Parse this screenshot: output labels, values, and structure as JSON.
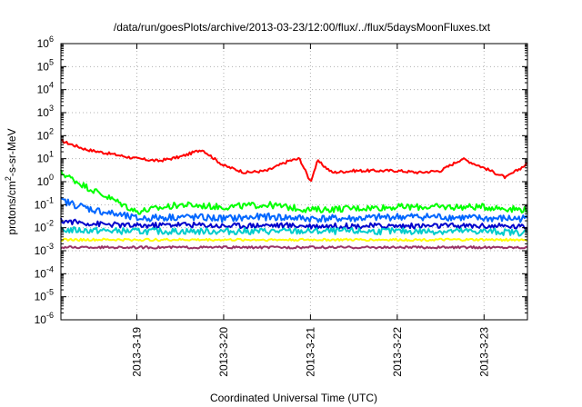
{
  "chart_data": {
    "type": "line",
    "title": "/data/run/goesPlots/archive/2013-03-23/12:00/flux/../flux/5daysMoonFluxes.txt",
    "xlabel": "Coordinated Universal Time (UTC)",
    "ylabel": {
      "main": "protons/cm",
      "sup": "2",
      "rest": "-s-sr-MeV"
    },
    "yscale": "log",
    "ylim_exp": [
      -6,
      6
    ],
    "ytick_exponents": [
      "-6",
      "-5",
      "-4",
      "-3",
      "-2",
      "-1",
      "0",
      "1",
      "2",
      "3",
      "4",
      "5",
      "6"
    ],
    "ytick_base": "10",
    "xlim": [
      "2013-03-18T03:00",
      "2013-03-23T12:00"
    ],
    "xticks": [
      {
        "label": "2013-3-19",
        "t": "2013-03-19T00:00"
      },
      {
        "label": "2013-3-20",
        "t": "2013-03-20T00:00"
      },
      {
        "label": "2013-3-21",
        "t": "2013-03-21T00:00"
      },
      {
        "label": "2013-3-22",
        "t": "2013-03-22T00:00"
      },
      {
        "label": "2013-3-23",
        "t": "2013-03-23T00:00"
      }
    ],
    "grid": true,
    "legend": "none",
    "series": [
      {
        "color": "#ff0000",
        "x": [
          "2013-03-18T03:00",
          "2013-03-18T10:00",
          "2013-03-18T18:00",
          "2013-03-19T00:00",
          "2013-03-19T06:00",
          "2013-03-19T12:00",
          "2013-03-19T18:00",
          "2013-03-20T00:00",
          "2013-03-20T06:00",
          "2013-03-20T12:00",
          "2013-03-20T18:00",
          "2013-03-20T21:00",
          "2013-03-21T00:00",
          "2013-03-21T02:00",
          "2013-03-21T06:00",
          "2013-03-21T12:00",
          "2013-03-21T18:00",
          "2013-03-22T00:00",
          "2013-03-22T06:00",
          "2013-03-22T12:00",
          "2013-03-22T18:00",
          "2013-03-23T00:00",
          "2013-03-23T06:00",
          "2013-03-23T12:00"
        ],
        "y": [
          60,
          25,
          15,
          10,
          8,
          12,
          25,
          5,
          2.5,
          3,
          8,
          10,
          1,
          8,
          2.5,
          3,
          3,
          3,
          2.5,
          3,
          10,
          4,
          1.5,
          6
        ]
      },
      {
        "color": "#00ff00",
        "x": [
          "2013-03-18T03:00",
          "2013-03-18T10:00",
          "2013-03-18T18:00",
          "2013-03-19T00:00",
          "2013-03-19T12:00",
          "2013-03-20T00:00",
          "2013-03-20T12:00",
          "2013-03-21T00:00",
          "2013-03-21T12:00",
          "2013-03-22T00:00",
          "2013-03-22T12:00",
          "2013-03-23T00:00",
          "2013-03-23T12:00"
        ],
        "y": [
          2.5,
          0.6,
          0.15,
          0.05,
          0.1,
          0.08,
          0.1,
          0.06,
          0.07,
          0.08,
          0.08,
          0.08,
          0.06
        ]
      },
      {
        "color": "#0066ff",
        "x": [
          "2013-03-18T03:00",
          "2013-03-18T12:00",
          "2013-03-19T00:00",
          "2013-03-19T12:00",
          "2013-03-20T00:00",
          "2013-03-20T12:00",
          "2013-03-21T00:00",
          "2013-03-21T12:00",
          "2013-03-22T00:00",
          "2013-03-22T12:00",
          "2013-03-23T00:00",
          "2013-03-23T12:00"
        ],
        "y": [
          0.15,
          0.06,
          0.025,
          0.03,
          0.025,
          0.03,
          0.025,
          0.025,
          0.03,
          0.03,
          0.025,
          0.025
        ]
      },
      {
        "color": "#0000cc",
        "x": [
          "2013-03-18T03:00",
          "2013-03-18T12:00",
          "2013-03-19T00:00",
          "2013-03-19T12:00",
          "2013-03-20T00:00",
          "2013-03-20T12:00",
          "2013-03-21T00:00",
          "2013-03-21T12:00",
          "2013-03-22T00:00",
          "2013-03-22T12:00",
          "2013-03-23T00:00",
          "2013-03-23T12:00"
        ],
        "y": [
          0.02,
          0.015,
          0.012,
          0.014,
          0.012,
          0.013,
          0.012,
          0.012,
          0.012,
          0.012,
          0.012,
          0.011
        ]
      },
      {
        "color": "#00cccc",
        "x": [
          "2013-03-18T03:00",
          "2013-03-19T00:00",
          "2013-03-20T00:00",
          "2013-03-21T00:00",
          "2013-03-22T00:00",
          "2013-03-23T00:00",
          "2013-03-23T12:00"
        ],
        "y": [
          0.008,
          0.007,
          0.007,
          0.007,
          0.007,
          0.007,
          0.006
        ]
      },
      {
        "color": "#ffff00",
        "x": [
          "2013-03-18T03:00",
          "2013-03-19T00:00",
          "2013-03-20T00:00",
          "2013-03-21T00:00",
          "2013-03-22T00:00",
          "2013-03-23T00:00",
          "2013-03-23T12:00"
        ],
        "y": [
          0.003,
          0.003,
          0.003,
          0.003,
          0.003,
          0.003,
          0.003
        ]
      },
      {
        "color": "#993366",
        "x": [
          "2013-03-18T03:00",
          "2013-03-19T00:00",
          "2013-03-20T00:00",
          "2013-03-21T00:00",
          "2013-03-22T00:00",
          "2013-03-23T00:00",
          "2013-03-23T12:00"
        ],
        "y": [
          0.0014,
          0.0014,
          0.0014,
          0.0014,
          0.0014,
          0.0014,
          0.0014
        ]
      }
    ]
  }
}
